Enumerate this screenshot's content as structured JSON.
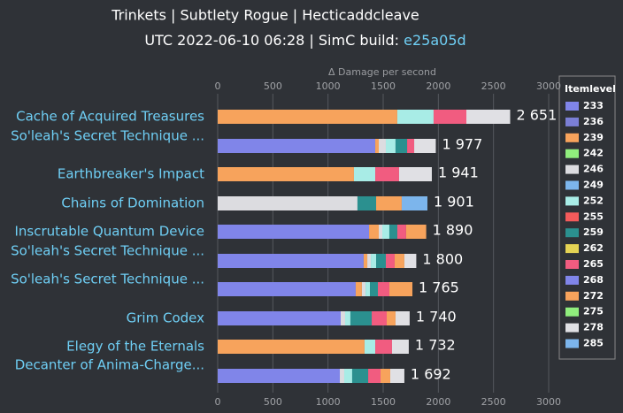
{
  "chart_data": {
    "type": "stacked_barh",
    "title": "Trinkets | Subtlety Rogue | Hecticaddcleave",
    "subtitle": "UTC 2022-06-10 06:28 | SimC build: ",
    "build_link": "e25a05d",
    "x_label": "Δ Damage per second",
    "legend_title": "Itemlevel",
    "categories": [
      "Cache of Acquired Treasures",
      "So'leah's Secret Technique ...",
      "Earthbreaker's Impact",
      "Chains of Domination",
      "Inscrutable Quantum Device",
      "So'leah's Secret Technique ...",
      "So'leah's Secret Technique ...",
      "Grim Codex",
      "Elegy of the Eternals",
      "Decanter of Anima-Charge..."
    ],
    "totals": [
      2651,
      1977,
      1941,
      1901,
      1890,
      1800,
      1765,
      1740,
      1732,
      1692
    ],
    "total_labels": [
      "2 651",
      "1 977",
      "1 941",
      "1 901",
      "1 890",
      "1 800",
      "1 765",
      "1 740",
      "1 732",
      "1 692"
    ],
    "xlim": [
      0,
      3000
    ],
    "xticks": [
      0,
      500,
      1000,
      1500,
      2000,
      2500,
      3000
    ],
    "grid": true,
    "legend": "right",
    "series": [
      {
        "name": "233",
        "color": "#8085e9",
        "values": [
          null,
          1428,
          null,
          null,
          1372,
          1323,
          1251,
          1115,
          null,
          1107
        ]
      },
      {
        "name": "236",
        "color": "#7b7fd6",
        "values": [
          null,
          null,
          null,
          null,
          null,
          null,
          null,
          null,
          null,
          null
        ]
      },
      {
        "name": "239",
        "color": "#f7a35c",
        "values": [
          1628,
          32,
          1235,
          null,
          88,
          33,
          56,
          null,
          1331,
          null
        ]
      },
      {
        "name": "242",
        "color": "#90ed7d",
        "values": [
          null,
          null,
          null,
          null,
          null,
          null,
          null,
          null,
          null,
          null
        ]
      },
      {
        "name": "246",
        "color": "#dcdce0",
        "values": [
          null,
          64,
          null,
          1267,
          32,
          32,
          33,
          40,
          null,
          40
        ]
      },
      {
        "name": "249",
        "color": "#7cb5ec",
        "values": [
          null,
          null,
          null,
          null,
          null,
          null,
          null,
          null,
          null,
          null
        ]
      },
      {
        "name": "252",
        "color": "#a8ece6",
        "values": [
          329,
          88,
          193,
          null,
          64,
          48,
          40,
          48,
          97,
          72
        ]
      },
      {
        "name": "255",
        "color": "#f45b5b",
        "values": [
          null,
          null,
          null,
          null,
          null,
          null,
          null,
          null,
          null,
          null
        ]
      },
      {
        "name": "259",
        "color": "#2b908f",
        "values": [
          null,
          105,
          null,
          169,
          72,
          88,
          72,
          193,
          null,
          145
        ]
      },
      {
        "name": "262",
        "color": "#e4d354",
        "values": [
          null,
          null,
          null,
          null,
          null,
          null,
          null,
          null,
          null,
          null
        ]
      },
      {
        "name": "265",
        "color": "#f15c80",
        "values": [
          297,
          64,
          216,
          null,
          80,
          80,
          104,
          136,
          152,
          112
        ]
      },
      {
        "name": "268",
        "color": "#8085e9",
        "values": [
          null,
          null,
          null,
          null,
          null,
          null,
          null,
          null,
          null,
          null
        ]
      },
      {
        "name": "272",
        "color": "#f7a35c",
        "values": [
          null,
          null,
          null,
          232,
          182,
          88,
          209,
          80,
          null,
          88
        ]
      },
      {
        "name": "275",
        "color": "#90ed7d",
        "values": [
          null,
          null,
          null,
          null,
          null,
          null,
          null,
          null,
          null,
          null
        ]
      },
      {
        "name": "278",
        "color": "#e0e0e4",
        "values": [
          397,
          196,
          297,
          null,
          null,
          108,
          null,
          128,
          152,
          128
        ]
      },
      {
        "name": "285",
        "color": "#7cb5ec",
        "values": [
          null,
          null,
          null,
          233,
          null,
          null,
          null,
          null,
          null,
          null
        ]
      }
    ]
  }
}
